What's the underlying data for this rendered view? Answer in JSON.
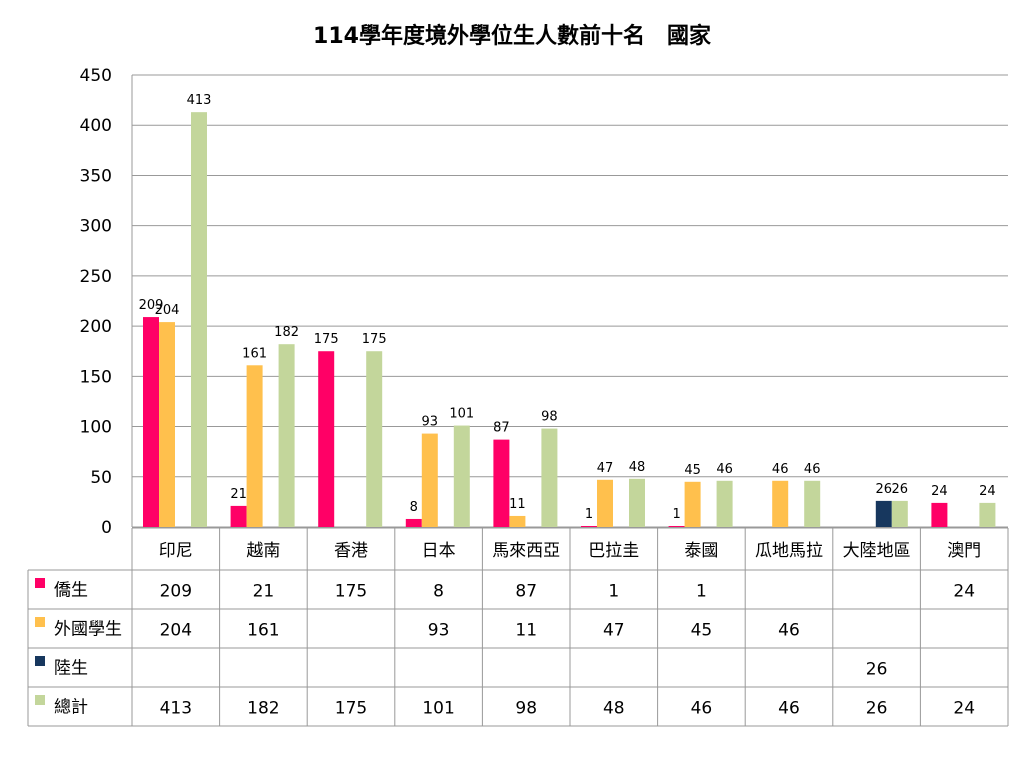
{
  "chart_data": {
    "type": "bar",
    "title": "114學年度境外學位生人數前十名　國家",
    "categories": [
      "印尼",
      "越南",
      "香港",
      "日本",
      "馬來西亞",
      "巴拉圭",
      "泰國",
      "瓜地馬拉",
      "大陸地區",
      "澳門"
    ],
    "series": [
      {
        "name": "僑生",
        "color": "#FF0066",
        "values": [
          209,
          21,
          175,
          8,
          87,
          1,
          1,
          null,
          null,
          24
        ]
      },
      {
        "name": "外國學生",
        "color": "#FFC04D",
        "values": [
          204,
          161,
          null,
          93,
          11,
          47,
          45,
          46,
          null,
          null
        ]
      },
      {
        "name": "陸生",
        "color": "#17375E",
        "values": [
          null,
          null,
          null,
          null,
          null,
          null,
          null,
          null,
          26,
          null
        ]
      },
      {
        "name": "總計",
        "color": "#C3D69B",
        "values": [
          413,
          182,
          175,
          101,
          98,
          48,
          46,
          46,
          26,
          24
        ]
      }
    ],
    "ylim": [
      0,
      450
    ],
    "yticks": [
      0,
      50,
      100,
      150,
      200,
      250,
      300,
      350,
      400,
      450
    ],
    "grid": true,
    "legend": "data-table-below",
    "xlabel": "",
    "ylabel": ""
  }
}
